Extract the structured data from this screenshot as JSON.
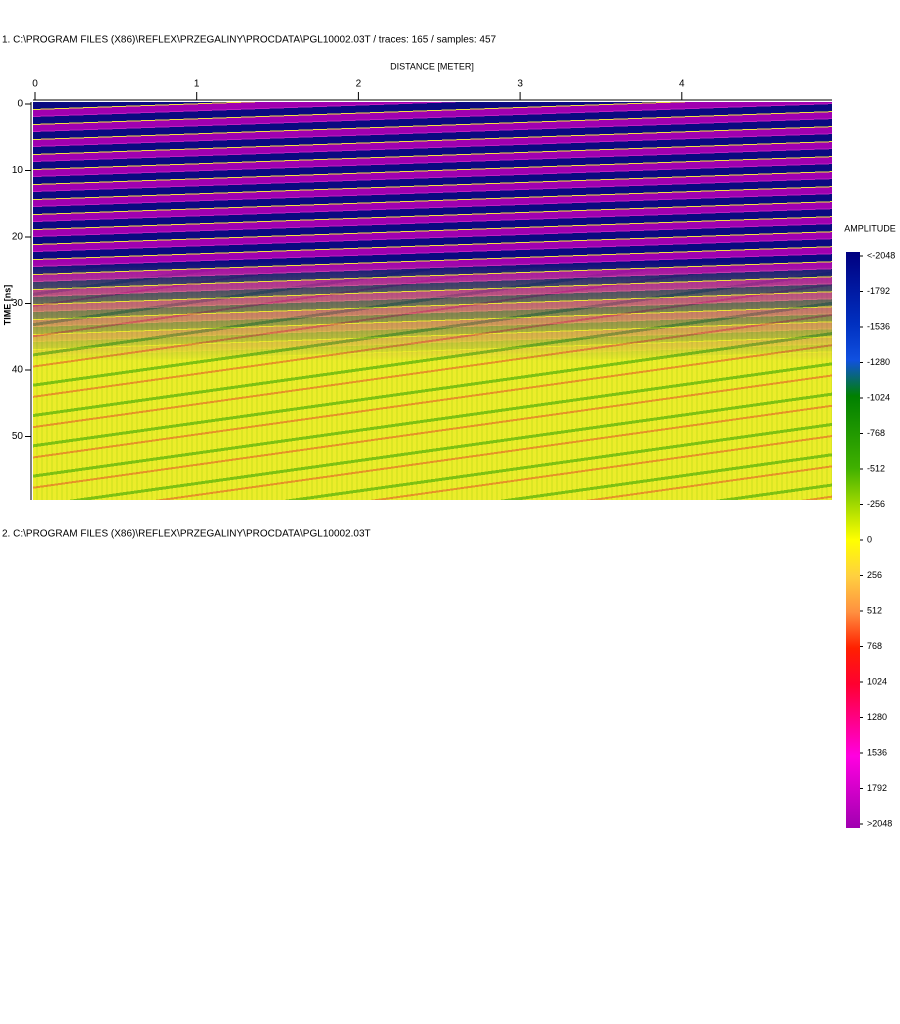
{
  "chart_data": {
    "type": "radargram",
    "title": "1. C:\\PROGRAM FILES (X86)\\REFLEX\\PRZEGALINY\\PROCDATA\\PGL10002.03T / traces: 165 / samples: 457",
    "subtitle": "2. C:\\PROGRAM FILES (X86)\\REFLEX\\PRZEGALINY\\PROCDATA\\PGL10002.03T",
    "x_label": "DISTANCE [METER]",
    "y_label": "TIME [ns]",
    "xlim": [
      0,
      4.93
    ],
    "xticks": [
      0,
      1,
      2,
      3,
      4
    ],
    "ylim": [
      0,
      59.5
    ],
    "yticks": [
      0,
      10,
      20,
      30,
      40,
      50
    ],
    "colorbar": {
      "title": "AMPLITUDE",
      "lim": [
        -2048,
        2048
      ],
      "ticks": [
        {
          "value": -2048,
          "label": "<-2048"
        },
        -1792,
        -1536,
        -1280,
        -1024,
        -768,
        -512,
        -256,
        0,
        256,
        512,
        768,
        1024,
        1280,
        1536,
        1792,
        {
          "value": 2048,
          "label": ">2048"
        }
      ],
      "colorscale": [
        {
          "value": -2048,
          "color": "#000080"
        },
        {
          "value": -1536,
          "color": "#0030c0"
        },
        {
          "value": -1280,
          "color": "#1050e0"
        },
        {
          "value": -1024,
          "color": "#008000"
        },
        {
          "value": -512,
          "color": "#40b000"
        },
        {
          "value": -256,
          "color": "#a0d800"
        },
        {
          "value": 0,
          "color": "#ffff00"
        },
        {
          "value": 256,
          "color": "#ffd040"
        },
        {
          "value": 512,
          "color": "#ff9040"
        },
        {
          "value": 768,
          "color": "#ff2000"
        },
        {
          "value": 1024,
          "color": "#ff0030"
        },
        {
          "value": 1536,
          "color": "#ff00e0"
        },
        {
          "value": 2048,
          "color": "#a000b0"
        }
      ]
    }
  }
}
